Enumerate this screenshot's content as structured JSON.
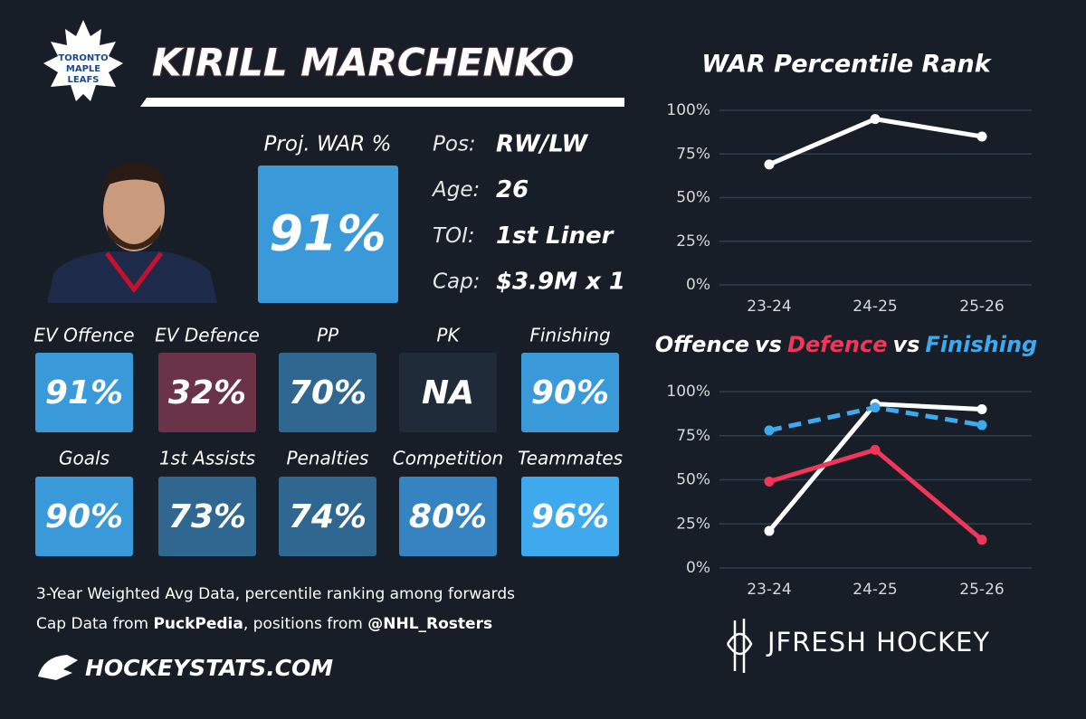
{
  "team_logo": [
    "TORONTO",
    "MAPLE",
    "LEAFS"
  ],
  "header": {
    "name": "KIRILL MARCHENKO"
  },
  "proj_war": {
    "label": "Proj. WAR %",
    "value": "91%",
    "color": "#3a9ad9"
  },
  "info": [
    {
      "label": "Pos:",
      "value": "RW/LW"
    },
    {
      "label": "Age:",
      "value": "26"
    },
    {
      "label": "TOI:",
      "value": "1st Liner"
    },
    {
      "label": "Cap:",
      "value": "$3.9M x 1"
    }
  ],
  "tiles": [
    {
      "label": "EV Offence",
      "value": "91%",
      "color": "#3a9ad9"
    },
    {
      "label": "EV Defence",
      "value": "32%",
      "color": "#6b3347"
    },
    {
      "label": "PP",
      "value": "70%",
      "color": "#2f6790"
    },
    {
      "label": "PK",
      "value": "NA",
      "color": "#1f2b39"
    },
    {
      "label": "Finishing",
      "value": "90%",
      "color": "#3a9ad9"
    },
    {
      "label": "Goals",
      "value": "90%",
      "color": "#3a9ad9"
    },
    {
      "label": "1st Assists",
      "value": "73%",
      "color": "#2f6790"
    },
    {
      "label": "Penalties",
      "value": "74%",
      "color": "#2f6790"
    },
    {
      "label": "Competition",
      "value": "80%",
      "color": "#3583c0"
    },
    {
      "label": "Teammates",
      "value": "96%",
      "color": "#3fa9ee"
    }
  ],
  "footer": {
    "line1": "3-Year Weighted Avg Data, percentile ranking among forwards",
    "line2": [
      {
        "text": "Cap Data from ",
        "bold": false
      },
      {
        "text": "PuckPedia",
        "bold": true
      },
      {
        "text": ", positions from ",
        "bold": false
      },
      {
        "text": "@NHL_Rosters",
        "bold": true
      }
    ],
    "site": "HOCKEYSTATS.COM",
    "brand": "JFRESH HOCKEY"
  },
  "chart_data": [
    {
      "type": "line",
      "title": "WAR Percentile Rank",
      "categories": [
        "23-24",
        "24-25",
        "25-26"
      ],
      "series": [
        {
          "color": "#ffffff",
          "values": [
            69,
            95,
            85
          ]
        }
      ],
      "ylim": [
        0,
        100
      ],
      "yticks": [
        {
          "value": 0,
          "label": "0%"
        },
        {
          "value": 25,
          "label": "25%"
        },
        {
          "value": 50,
          "label": "50%"
        },
        {
          "value": 75,
          "label": "75%"
        },
        {
          "value": 100,
          "label": "100%"
        }
      ],
      "grid": true
    },
    {
      "type": "line",
      "title_separator": "vs",
      "categories": [
        "23-24",
        "24-25",
        "25-26"
      ],
      "series": [
        {
          "name": "Offence",
          "color": "#ffffff",
          "values": [
            21,
            93,
            90
          ]
        },
        {
          "name": "Defence",
          "color": "#f0375a",
          "values": [
            49,
            67,
            16
          ]
        },
        {
          "name": "Finishing",
          "color": "#3fa9ee",
          "dashed": true,
          "values": [
            78,
            91,
            81
          ]
        }
      ],
      "ylim": [
        0,
        100
      ],
      "yticks": [
        {
          "value": 0,
          "label": "0%"
        },
        {
          "value": 25,
          "label": "25%"
        },
        {
          "value": 50,
          "label": "50%"
        },
        {
          "value": 75,
          "label": "75%"
        },
        {
          "value": 100,
          "label": "100%"
        }
      ],
      "grid": true
    }
  ]
}
